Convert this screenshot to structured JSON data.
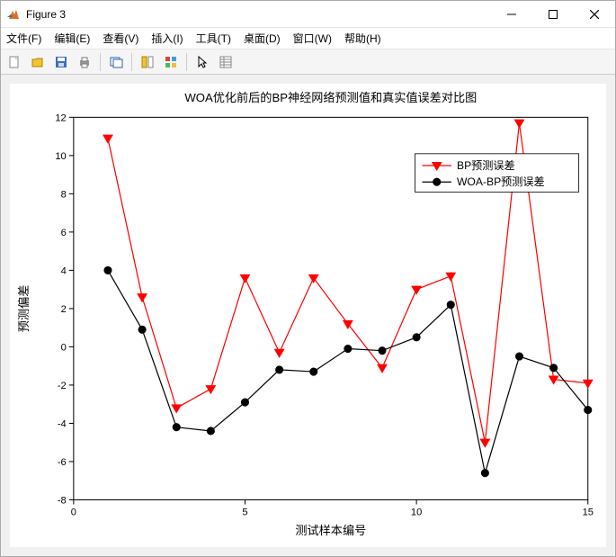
{
  "window": {
    "title": "Figure 3"
  },
  "menu": {
    "items": [
      "文件(F)",
      "编辑(E)",
      "查看(V)",
      "插入(I)",
      "工具(T)",
      "桌面(D)",
      "窗口(W)",
      "帮助(H)"
    ]
  },
  "toolbar": {
    "icons": [
      "new",
      "open",
      "save",
      "print",
      "sep",
      "copy-fig",
      "sep",
      "data-cursor",
      "color-grid",
      "sep",
      "pointer",
      "inspector"
    ]
  },
  "chart": {
    "title": "WOA优化前后的BP神经网络预测值和真实值误差对比图",
    "xlabel": "测试样本编号",
    "ylabel": "预测偏差",
    "xlim": [
      0,
      15
    ],
    "ylim": [
      -8,
      12
    ],
    "xticks": [
      0,
      5,
      10,
      15
    ],
    "yticks": [
      -8,
      -6,
      -4,
      -2,
      0,
      2,
      4,
      6,
      8,
      10,
      12
    ],
    "background_color": "#ffffff",
    "axis_color": "#000000",
    "series": [
      {
        "name": "BP预测误差",
        "color": "#ff0000",
        "marker": "triangle-down",
        "marker_fill": "#ff0000",
        "x": [
          1,
          2,
          3,
          4,
          5,
          6,
          7,
          8,
          9,
          10,
          11,
          12,
          13,
          14,
          15
        ],
        "y": [
          10.9,
          2.6,
          -3.2,
          -2.2,
          3.6,
          -0.3,
          3.6,
          1.2,
          -1.1,
          3.0,
          3.7,
          -5.0,
          11.7,
          -1.7,
          -1.9
        ]
      },
      {
        "name": "WOA-BP预测误差",
        "color": "#000000",
        "marker": "circle",
        "marker_fill": "#000000",
        "x": [
          1,
          2,
          3,
          4,
          5,
          6,
          7,
          8,
          9,
          10,
          11,
          12,
          13,
          14,
          15
        ],
        "y": [
          4.0,
          0.9,
          -4.2,
          -4.4,
          -2.9,
          -1.2,
          -1.3,
          -0.1,
          -0.2,
          0.5,
          2.2,
          -6.6,
          -0.5,
          -1.1,
          -3.3
        ]
      }
    ],
    "legend": {
      "position": "upper-right",
      "items": [
        "BP预测误差",
        "WOA-BP预测误差"
      ]
    }
  }
}
